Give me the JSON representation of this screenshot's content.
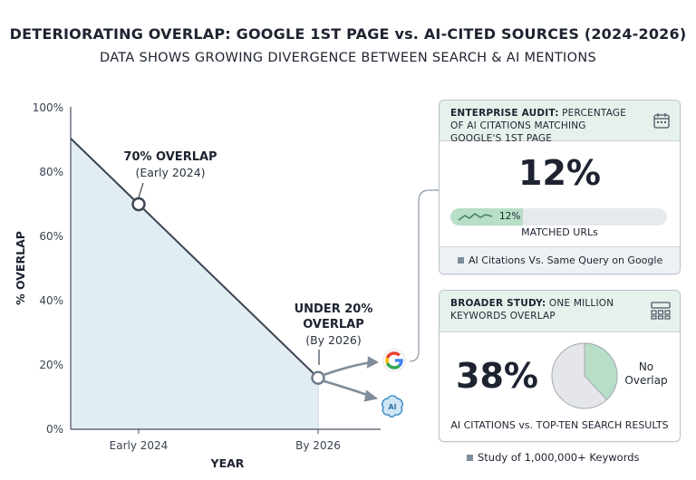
{
  "title": "DETERIORATING OVERLAP: GOOGLE 1ST PAGE vs. AI-CITED SOURCES (2024-2026)",
  "subtitle": "DATA SHOWS GROWING DIVERGENCE BETWEEN SEARCH & AI MENTIONS",
  "chart_data": {
    "type": "line",
    "x": [
      "Early 2024",
      "By 2026"
    ],
    "series": [
      {
        "values": [
          70,
          16
        ]
      }
    ],
    "start_value": 92,
    "ylim": [
      0,
      100
    ],
    "yticks": [
      "0%",
      "20%",
      "40%",
      "60%",
      "80%",
      "100%"
    ],
    "xlabel": "YEAR",
    "ylabel": "% OVERLAP",
    "annotations": [
      {
        "bold": "70% OVERLAP",
        "sub": "(Early 2024)"
      },
      {
        "bold_lines": [
          "UNDER 20%",
          "OVERLAP"
        ],
        "sub": "(By 2026)"
      }
    ],
    "fill_color": "#dde9f1",
    "line_color": "#3a4350"
  },
  "icons": {
    "google": "google-icon",
    "ai": "ai-brain-icon"
  },
  "card1": {
    "header_bold": "ENTERPRISE AUDIT:",
    "header_rest": " PERCENTAGE OF AI CITATIONS MATCHING GOOGLE'S 1ST PAGE",
    "value": "12%",
    "bar_value": 0.12,
    "bar_label": "12%",
    "caption": "MATCHED URLs",
    "footer": "AI Citations Vs. Same Query on Google",
    "icon": "calendar-icon"
  },
  "card2": {
    "header_bold": "BROADER STUDY:",
    "header_rest": " ONE MILLION KEYWORDS OVERLAP",
    "value": "38%",
    "pie_value": 0.38,
    "pie_label_lines": [
      "No",
      "Overlap"
    ],
    "caption": "AI CITATIONS vs. TOP-TEN SEARCH RESULTS",
    "icon": "grid-icon",
    "overlap_color": "#b8dec7",
    "rest_color": "#e4e6ea"
  },
  "legend": "Study of 1,000,000+ Keywords"
}
